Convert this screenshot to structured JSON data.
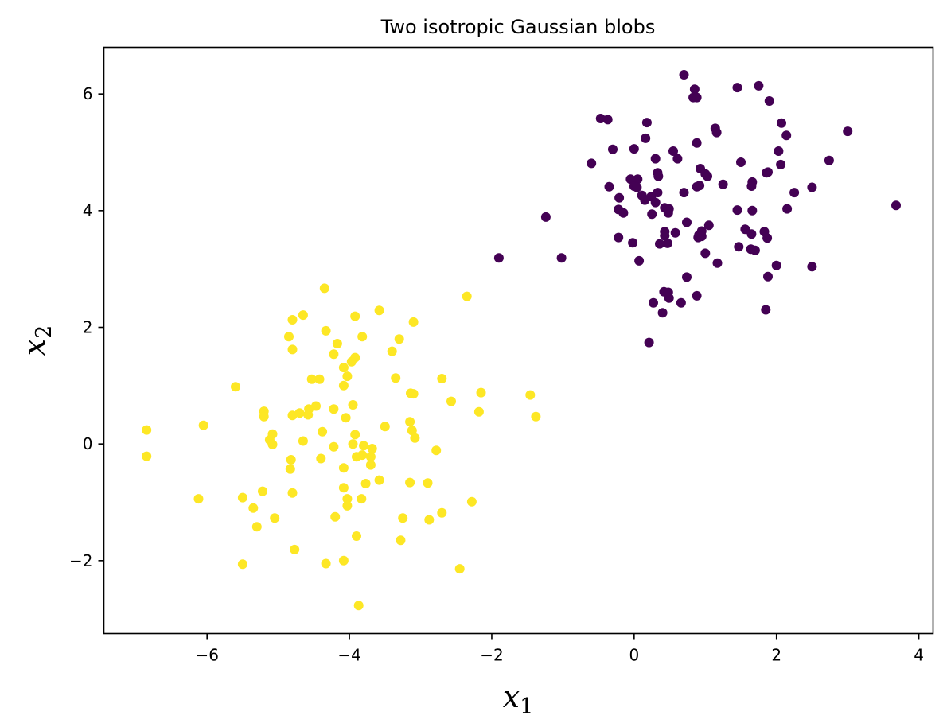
{
  "chart_data": {
    "type": "scatter",
    "title": "Two isotropic Gaussian blobs",
    "xlabel": {
      "main": "x",
      "sub": "1"
    },
    "ylabel": {
      "main": "x",
      "sub": "2"
    },
    "xlim": [
      -7.45,
      4.2
    ],
    "ylim": [
      -3.25,
      6.8
    ],
    "xticks": [
      -6,
      -4,
      -2,
      0,
      2,
      4
    ],
    "yticks": [
      -2,
      0,
      2,
      4,
      6
    ],
    "grid": false,
    "series": [
      {
        "color": "#440154",
        "points": [
          [
            0.7,
            6.33
          ],
          [
            1.75,
            6.14
          ],
          [
            1.45,
            6.11
          ],
          [
            0.85,
            6.08
          ],
          [
            0.83,
            5.94
          ],
          [
            0.88,
            5.94
          ],
          [
            1.9,
            5.88
          ],
          [
            -0.47,
            5.58
          ],
          [
            -0.37,
            5.56
          ],
          [
            0.18,
            5.51
          ],
          [
            2.07,
            5.5
          ],
          [
            1.14,
            5.41
          ],
          [
            3.0,
            5.36
          ],
          [
            1.16,
            5.34
          ],
          [
            2.14,
            5.29
          ],
          [
            0.16,
            5.24
          ],
          [
            0.88,
            5.16
          ],
          [
            -0.3,
            5.05
          ],
          [
            0.0,
            5.06
          ],
          [
            0.55,
            5.02
          ],
          [
            2.03,
            5.02
          ],
          [
            0.3,
            4.89
          ],
          [
            0.61,
            4.89
          ],
          [
            2.74,
            4.86
          ],
          [
            1.5,
            4.83
          ],
          [
            -0.6,
            4.81
          ],
          [
            2.06,
            4.79
          ],
          [
            0.93,
            4.72
          ],
          [
            0.33,
            4.65
          ],
          [
            1.0,
            4.63
          ],
          [
            1.86,
            4.65
          ],
          [
            1.88,
            4.66
          ],
          [
            0.34,
            4.59
          ],
          [
            1.03,
            4.59
          ],
          [
            -0.05,
            4.54
          ],
          [
            0.05,
            4.54
          ],
          [
            1.66,
            4.49
          ],
          [
            1.25,
            4.45
          ],
          [
            0.0,
            4.42
          ],
          [
            0.88,
            4.41
          ],
          [
            0.92,
            4.43
          ],
          [
            1.65,
            4.42
          ],
          [
            -0.35,
            4.41
          ],
          [
            2.5,
            4.4
          ],
          [
            0.04,
            4.4
          ],
          [
            0.33,
            4.31
          ],
          [
            0.7,
            4.31
          ],
          [
            2.25,
            4.31
          ],
          [
            0.11,
            4.26
          ],
          [
            0.24,
            4.24
          ],
          [
            -0.21,
            4.22
          ],
          [
            0.15,
            4.18
          ],
          [
            0.3,
            4.14
          ],
          [
            3.68,
            4.09
          ],
          [
            0.43,
            4.05
          ],
          [
            0.49,
            4.03
          ],
          [
            2.15,
            4.03
          ],
          [
            1.45,
            4.01
          ],
          [
            1.66,
            4.0
          ],
          [
            -0.22,
            4.02
          ],
          [
            -0.15,
            3.96
          ],
          [
            0.48,
            3.96
          ],
          [
            0.25,
            3.94
          ],
          [
            1.05,
            3.75
          ],
          [
            0.74,
            3.8
          ],
          [
            1.56,
            3.68
          ],
          [
            0.95,
            3.65
          ],
          [
            1.83,
            3.64
          ],
          [
            0.43,
            3.64
          ],
          [
            0.43,
            3.57
          ],
          [
            0.58,
            3.62
          ],
          [
            1.65,
            3.6
          ],
          [
            0.91,
            3.58
          ],
          [
            0.95,
            3.56
          ],
          [
            0.9,
            3.54
          ],
          [
            -0.22,
            3.54
          ],
          [
            1.87,
            3.53
          ],
          [
            0.36,
            3.43
          ],
          [
            0.47,
            3.44
          ],
          [
            -0.02,
            3.45
          ],
          [
            1.47,
            3.38
          ],
          [
            1.64,
            3.34
          ],
          [
            1.7,
            3.32
          ],
          [
            1.0,
            3.27
          ],
          [
            -1.9,
            3.19
          ],
          [
            -1.02,
            3.19
          ],
          [
            0.07,
            3.14
          ],
          [
            1.17,
            3.1
          ],
          [
            2.0,
            3.06
          ],
          [
            2.5,
            3.04
          ],
          [
            1.88,
            2.87
          ],
          [
            0.74,
            2.86
          ],
          [
            0.42,
            2.61
          ],
          [
            0.48,
            2.6
          ],
          [
            0.88,
            2.54
          ],
          [
            0.49,
            2.5
          ],
          [
            0.27,
            2.42
          ],
          [
            0.66,
            2.42
          ],
          [
            0.4,
            2.25
          ],
          [
            1.85,
            2.3
          ],
          [
            0.21,
            1.74
          ],
          [
            -1.24,
            3.89
          ]
        ]
      },
      {
        "color": "#fde725",
        "points": [
          [
            -4.35,
            2.67
          ],
          [
            -2.35,
            2.53
          ],
          [
            -3.58,
            2.29
          ],
          [
            -4.65,
            2.21
          ],
          [
            -3.92,
            2.19
          ],
          [
            -4.8,
            2.13
          ],
          [
            -3.1,
            2.09
          ],
          [
            -4.33,
            1.94
          ],
          [
            -4.85,
            1.84
          ],
          [
            -3.82,
            1.84
          ],
          [
            -3.3,
            1.8
          ],
          [
            -4.17,
            1.72
          ],
          [
            -4.8,
            1.62
          ],
          [
            -3.4,
            1.59
          ],
          [
            -4.22,
            1.54
          ],
          [
            -3.92,
            1.48
          ],
          [
            -3.97,
            1.41
          ],
          [
            -4.08,
            1.31
          ],
          [
            -4.03,
            1.16
          ],
          [
            -4.53,
            1.11
          ],
          [
            -4.42,
            1.11
          ],
          [
            -2.7,
            1.12
          ],
          [
            -3.35,
            1.13
          ],
          [
            -5.6,
            0.98
          ],
          [
            -4.08,
            1.0
          ],
          [
            -3.1,
            0.86
          ],
          [
            -3.14,
            0.87
          ],
          [
            -2.15,
            0.88
          ],
          [
            -1.46,
            0.84
          ],
          [
            -2.57,
            0.73
          ],
          [
            -3.95,
            0.67
          ],
          [
            -4.47,
            0.65
          ],
          [
            -4.57,
            0.6
          ],
          [
            -4.22,
            0.6
          ],
          [
            -5.2,
            0.56
          ],
          [
            -2.18,
            0.55
          ],
          [
            -4.7,
            0.53
          ],
          [
            -4.58,
            0.5
          ],
          [
            -4.8,
            0.49
          ],
          [
            -5.2,
            0.47
          ],
          [
            -1.38,
            0.47
          ],
          [
            -4.05,
            0.45
          ],
          [
            -3.15,
            0.38
          ],
          [
            -6.05,
            0.32
          ],
          [
            -3.5,
            0.3
          ],
          [
            -6.85,
            0.24
          ],
          [
            -3.12,
            0.23
          ],
          [
            -4.38,
            0.21
          ],
          [
            -5.08,
            0.17
          ],
          [
            -3.92,
            0.16
          ],
          [
            -3.08,
            0.1
          ],
          [
            -5.12,
            0.07
          ],
          [
            -4.65,
            0.05
          ],
          [
            -5.08,
            -0.01
          ],
          [
            -3.95,
            0.0
          ],
          [
            -3.8,
            -0.03
          ],
          [
            -4.22,
            -0.05
          ],
          [
            -3.68,
            -0.08
          ],
          [
            -2.78,
            -0.11
          ],
          [
            -3.82,
            -0.19
          ],
          [
            -3.7,
            -0.22
          ],
          [
            -6.85,
            -0.21
          ],
          [
            -3.9,
            -0.22
          ],
          [
            -4.4,
            -0.25
          ],
          [
            -4.82,
            -0.27
          ],
          [
            -3.7,
            -0.36
          ],
          [
            -4.08,
            -0.41
          ],
          [
            -4.83,
            -0.43
          ],
          [
            -3.58,
            -0.62
          ],
          [
            -3.15,
            -0.66
          ],
          [
            -2.9,
            -0.67
          ],
          [
            -3.77,
            -0.68
          ],
          [
            -4.08,
            -0.75
          ],
          [
            -5.22,
            -0.81
          ],
          [
            -4.8,
            -0.84
          ],
          [
            -5.5,
            -0.92
          ],
          [
            -6.12,
            -0.94
          ],
          [
            -4.03,
            -0.94
          ],
          [
            -3.83,
            -0.94
          ],
          [
            -2.28,
            -0.99
          ],
          [
            -4.03,
            -1.06
          ],
          [
            -5.35,
            -1.1
          ],
          [
            -2.7,
            -1.18
          ],
          [
            -4.2,
            -1.25
          ],
          [
            -5.05,
            -1.27
          ],
          [
            -3.25,
            -1.27
          ],
          [
            -2.88,
            -1.3
          ],
          [
            -5.3,
            -1.42
          ],
          [
            -3.9,
            -1.58
          ],
          [
            -3.28,
            -1.65
          ],
          [
            -4.77,
            -1.81
          ],
          [
            -4.08,
            -2.0
          ],
          [
            -5.5,
            -2.06
          ],
          [
            -4.33,
            -2.05
          ],
          [
            -2.45,
            -2.14
          ],
          [
            -3.87,
            -2.77
          ]
        ]
      }
    ]
  }
}
